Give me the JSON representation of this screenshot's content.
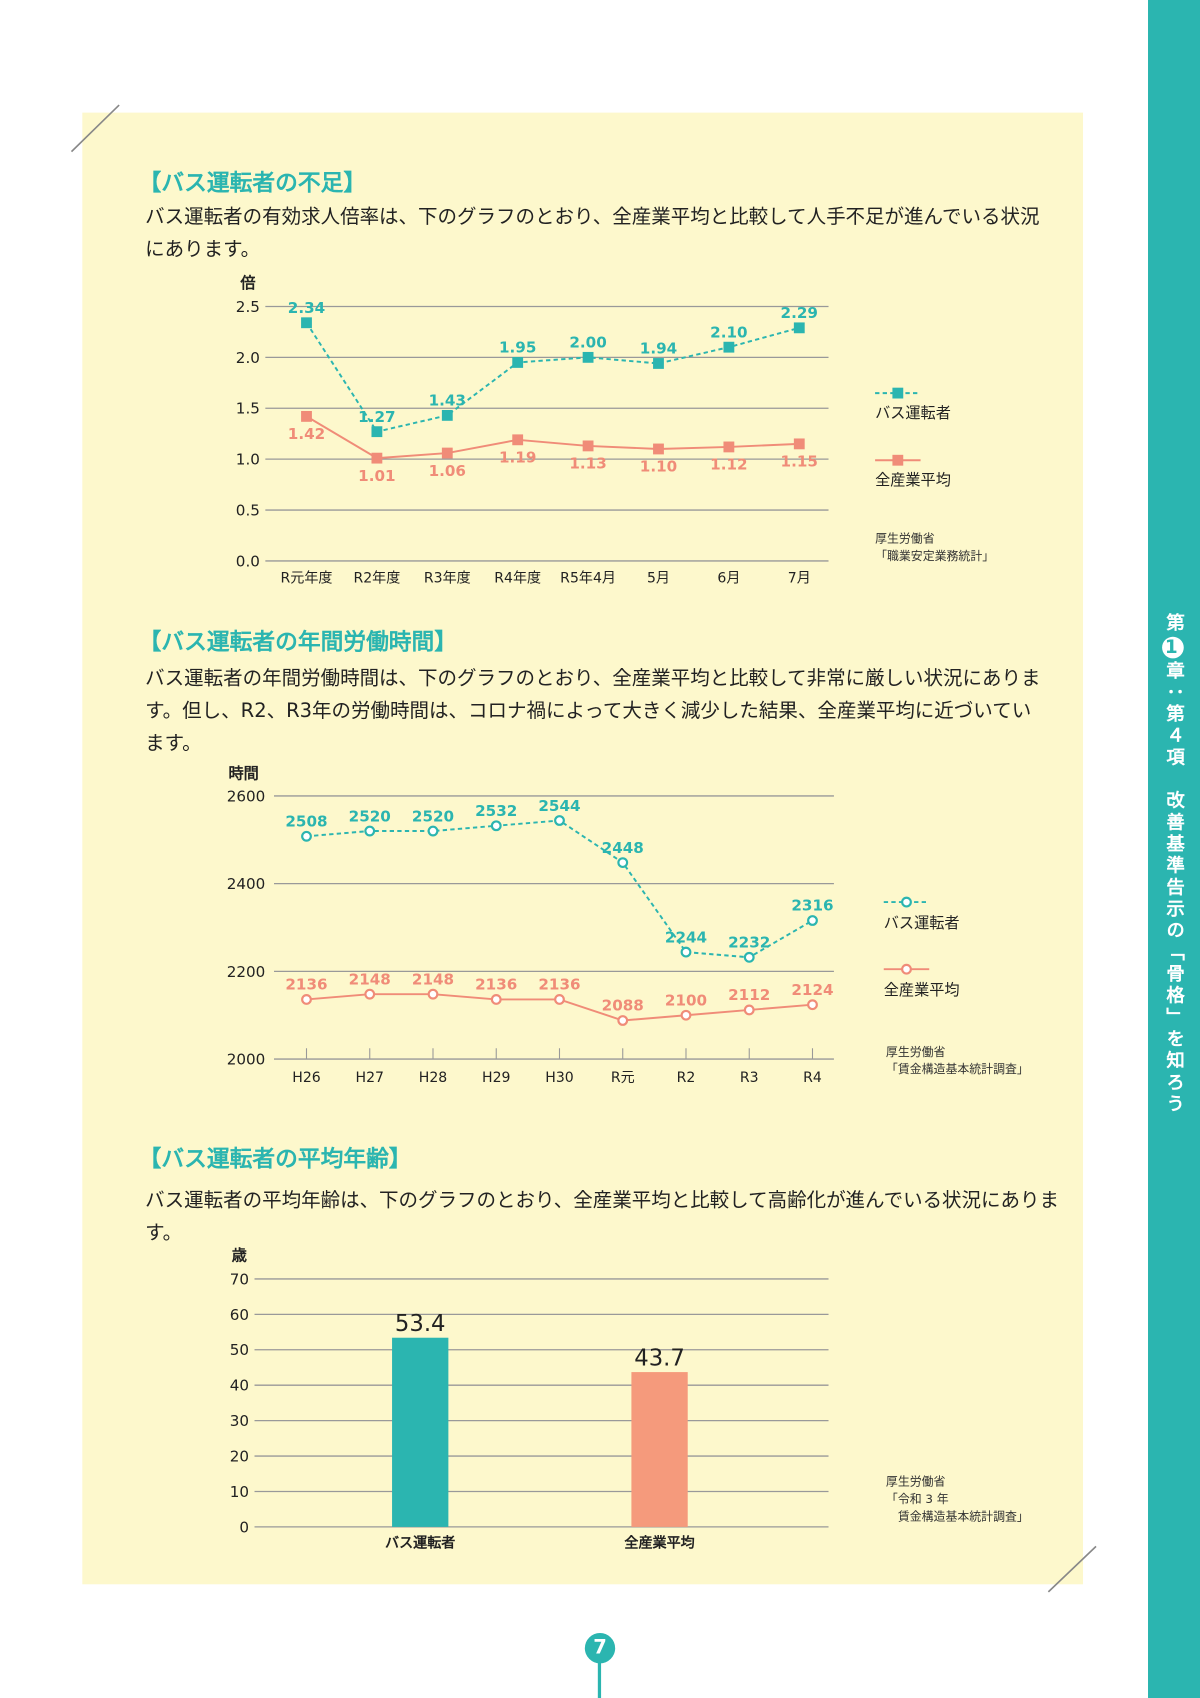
{
  "side_tab": [
    "第",
    "1",
    "章：第４項　改善基準告示の「骨格」を知ろう"
  ],
  "page_number": "7",
  "sections": [
    {
      "heading": "【バス運転者の不足】",
      "paragraph": "バス運転者の有効求人倍率は、下のグラフのとおり、全産業平均と比較して人手不足が進んでいる状況にあります。"
    },
    {
      "heading": "【バス運転者の年間労働時間】",
      "paragraph": "バス運転者の年間労働時間は、下のグラフのとおり、全産業平均と比較して非常に厳しい状況にあります。但し、R2、R3年の労働時間は、コロナ禍によって大きく減少した結果、全産業平均に近づいています。"
    },
    {
      "heading": "【バス運転者の平均年齢】",
      "paragraph": "バス運転者の平均年齢は、下のグラフのとおり、全産業平均と比較して高齢化が進んでいる状況にあります。"
    }
  ],
  "chart_data": [
    {
      "type": "line",
      "y_label": "倍",
      "categories": [
        "R元年度",
        "R2年度",
        "R3年度",
        "R4年度",
        "R5年4月",
        "5月",
        "6月",
        "7月"
      ],
      "series": [
        {
          "name": "バス運転者",
          "color": "#2bb5b0",
          "values": [
            2.34,
            1.27,
            1.43,
            1.95,
            2.0,
            1.94,
            2.1,
            2.29
          ],
          "value_labels": [
            "2.34",
            "1.27",
            "1.43",
            "1.95",
            "2.00",
            "1.94",
            "2.10",
            "2.29"
          ]
        },
        {
          "name": "全産業平均",
          "color": "#f08c78",
          "values": [
            1.42,
            1.01,
            1.06,
            1.19,
            1.13,
            1.1,
            1.12,
            1.15
          ],
          "value_labels": [
            "1.42",
            "1.01",
            "1.06",
            "1.19",
            "1.13",
            "1.10",
            "1.12",
            "1.15"
          ]
        }
      ],
      "ylim": [
        0,
        2.5
      ],
      "yticks": [
        {
          "value": 0,
          "label": "0.0"
        },
        0.5,
        {
          "value": 1,
          "label": "1.0"
        },
        1.5,
        {
          "value": 2,
          "label": "2.0"
        },
        2.5
      ],
      "grid": true,
      "source": [
        "厚生労働省",
        "「職業安定業務統計」"
      ]
    },
    {
      "type": "line",
      "y_label": "時間",
      "categories": [
        "H26",
        "H27",
        "H28",
        "H29",
        "H30",
        "R元",
        "R2",
        "R3",
        "R4"
      ],
      "series": [
        {
          "name": "バス運転者",
          "color": "#2bb5b0",
          "values": [
            2508,
            2520,
            2520,
            2532,
            2544,
            2448,
            2244,
            2232,
            2316
          ]
        },
        {
          "name": "全産業平均",
          "color": "#f08c78",
          "values": [
            2136,
            2148,
            2148,
            2136,
            2136,
            2088,
            2100,
            2112,
            2124
          ]
        }
      ],
      "ylim": [
        2000,
        2600
      ],
      "yticks": [
        2000,
        2200,
        2400,
        2600
      ],
      "grid": true,
      "source": [
        "厚生労働省",
        "「賃金構造基本統計調査」"
      ]
    },
    {
      "type": "bar",
      "y_label": "歳",
      "categories": [
        "バス運転者",
        "全産業平均"
      ],
      "values": [
        53.4,
        43.7
      ],
      "colors": [
        "#2bb5b0",
        "#f59a7c"
      ],
      "ylim": [
        0,
        70
      ],
      "yticks": [
        0,
        10,
        20,
        30,
        40,
        50,
        60,
        70
      ],
      "grid": true,
      "source": [
        "厚生労働省",
        "「令和 3 年",
        "　賃金構造基本統計調査」"
      ]
    }
  ]
}
